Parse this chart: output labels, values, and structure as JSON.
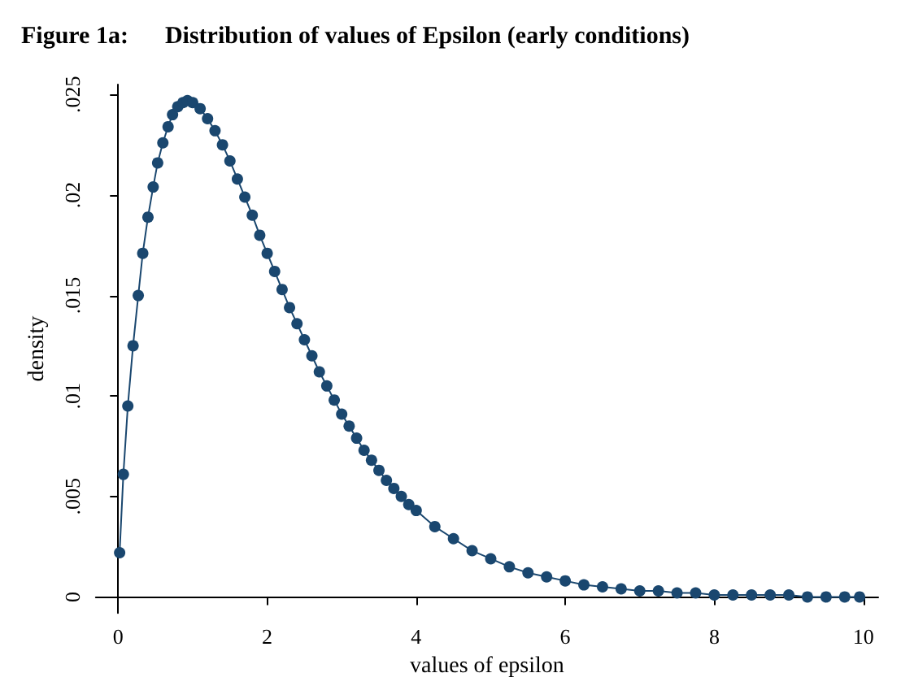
{
  "chart_data": {
    "type": "line",
    "title": "Figure 1a:      Distribution of values of Epsilon (early conditions)",
    "xlabel": "values of epsilon",
    "ylabel": "density",
    "x": [
      0.02,
      0.07,
      0.13,
      0.2,
      0.27,
      0.33,
      0.4,
      0.47,
      0.53,
      0.6,
      0.67,
      0.73,
      0.8,
      0.87,
      0.93,
      1.0,
      1.1,
      1.2,
      1.3,
      1.4,
      1.5,
      1.6,
      1.7,
      1.8,
      1.9,
      2.0,
      2.1,
      2.2,
      2.3,
      2.4,
      2.5,
      2.6,
      2.7,
      2.8,
      2.9,
      3.0,
      3.1,
      3.2,
      3.3,
      3.4,
      3.5,
      3.6,
      3.7,
      3.8,
      3.9,
      4.0,
      4.25,
      4.5,
      4.75,
      5.0,
      5.25,
      5.5,
      5.75,
      6.0,
      6.25,
      6.5,
      6.75,
      7.0,
      7.25,
      7.5,
      7.75,
      8.0,
      8.25,
      8.5,
      8.75,
      9.0,
      9.25,
      9.5,
      9.75,
      9.95
    ],
    "series": [
      {
        "color": "#1a476f",
        "marker": "circle",
        "line_style": "solid",
        "values": [
          0.0022,
          0.0061,
          0.0095,
          0.0125,
          0.015,
          0.0171,
          0.0189,
          0.0204,
          0.0216,
          0.0226,
          0.0234,
          0.024,
          0.0244,
          0.0246,
          0.0247,
          0.0246,
          0.0243,
          0.0238,
          0.0232,
          0.0225,
          0.0217,
          0.0208,
          0.0199,
          0.019,
          0.018,
          0.0171,
          0.0162,
          0.0153,
          0.0144,
          0.0136,
          0.0128,
          0.012,
          0.0112,
          0.0105,
          0.0098,
          0.0091,
          0.0085,
          0.0079,
          0.0073,
          0.0068,
          0.0063,
          0.0058,
          0.0054,
          0.005,
          0.0046,
          0.0043,
          0.0035,
          0.0029,
          0.0023,
          0.0019,
          0.0015,
          0.0012,
          0.001,
          0.0008,
          0.0006,
          0.0005,
          0.0004,
          0.0003,
          0.0003,
          0.0002,
          0.0002,
          0.0001,
          0.0001,
          0.0001,
          0.0001,
          0.0001,
          0,
          0,
          0,
          0
        ]
      }
    ],
    "xlim": [
      -0.3,
      10.2
    ],
    "ylim": [
      -0.0008,
      0.0255
    ],
    "xticks": [
      0,
      2,
      4,
      6,
      8,
      10
    ],
    "yticks": [
      0,
      {
        "value": 0.005,
        "label": ".005"
      },
      {
        "value": 0.01,
        "label": ".01"
      },
      {
        "value": 0.015,
        "label": ".015"
      },
      {
        "value": 0.02,
        "label": ".02"
      },
      {
        "value": 0.025,
        "label": ".025"
      }
    ],
    "grid": false
  }
}
